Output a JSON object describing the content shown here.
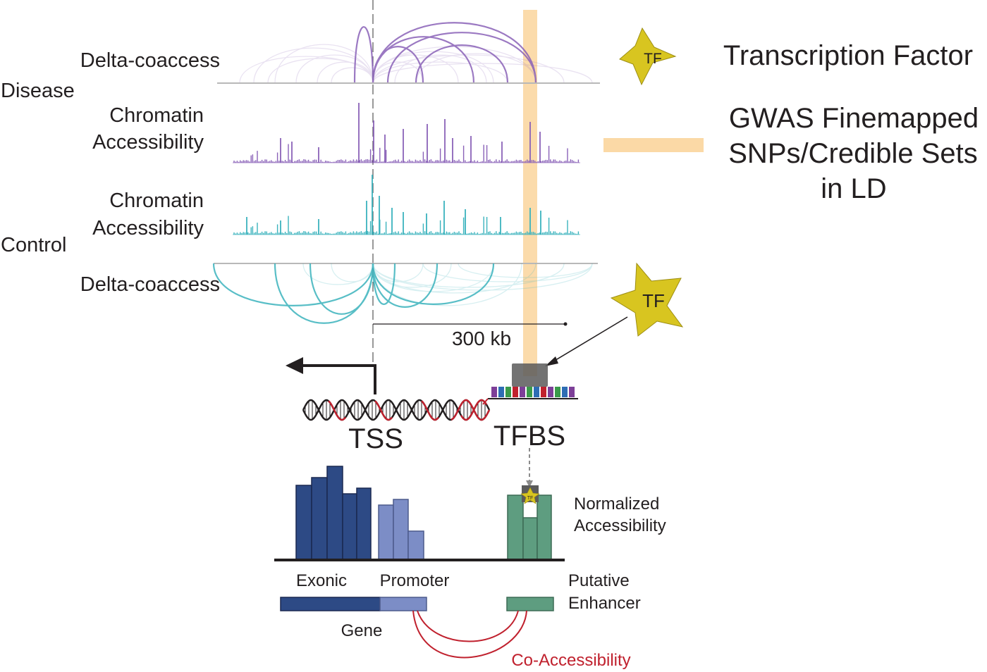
{
  "colors": {
    "disease": "#8a62b8",
    "control": "#3bb3bd",
    "gwas_highlight": "#fbd9a6",
    "tf_star": "#d8c520",
    "exonic": "#2d4a85",
    "promoter": "#7c8dc6",
    "enhancer": "#5e9d80",
    "co_access": "#c0212e",
    "dna_black": "#231f20",
    "dna_red": "#c0212e"
  },
  "icons": {
    "tf_star": "star-icon",
    "tss_arrow": "arrow-left-icon",
    "dna": "double-helix-icon"
  },
  "tracks": {
    "disease_label": "Disease",
    "control_label": "Control",
    "delta_coaccess_top": "Delta-coaccess",
    "chromatin_disease_line1": "Chromatin",
    "chromatin_disease_line2": "Accessibility",
    "chromatin_control_line1": "Chromatin",
    "chromatin_control_line2": "Accessibility",
    "delta_coaccess_bottom": "Delta-coaccess",
    "scale_bar": "300 kb"
  },
  "legend": {
    "tf_star_text": "TF",
    "tf_label": "Transcription Factor",
    "gwas_line1": "GWAS Finemapped",
    "gwas_line2": "SNPs/Credible Sets",
    "gwas_line3": "in LD"
  },
  "dna": {
    "tss_label": "TSS",
    "tfbs_label": "TFBS",
    "tf_star_text": "TF"
  },
  "bars": {
    "mini_tf_text": "TF",
    "normalized_line1": "Normalized",
    "normalized_line2": "Accessibility",
    "exonic_label": "Exonic",
    "promoter_label": "Promoter",
    "putative_line1": "Putative",
    "putative_line2": "Enhancer",
    "gene_label": "Gene",
    "co_access_label": "Co-Accessibility"
  }
}
